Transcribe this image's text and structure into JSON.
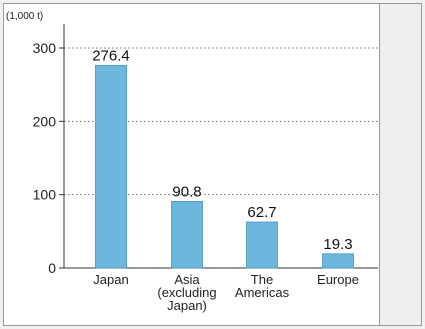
{
  "chart_data": {
    "type": "bar",
    "unit_label": "(1,000 t)",
    "categories": [
      [
        "Japan"
      ],
      [
        "Asia",
        "(excluding",
        "Japan)"
      ],
      [
        "The",
        "Americas"
      ],
      [
        "Europe"
      ]
    ],
    "values": [
      276.4,
      90.8,
      62.7,
      19.3
    ],
    "data_labels": [
      "276.4",
      "90.8",
      "62.7",
      "19.3"
    ],
    "y_ticks": [
      "0",
      "100",
      "200",
      "300"
    ],
    "ylim": [
      0,
      300
    ],
    "grid": true,
    "bar_color": "#6cb8dc",
    "bar_edge_color": "#4a93b8",
    "grid_color": "#6d6d6d",
    "xlabel": "",
    "ylabel": ""
  }
}
